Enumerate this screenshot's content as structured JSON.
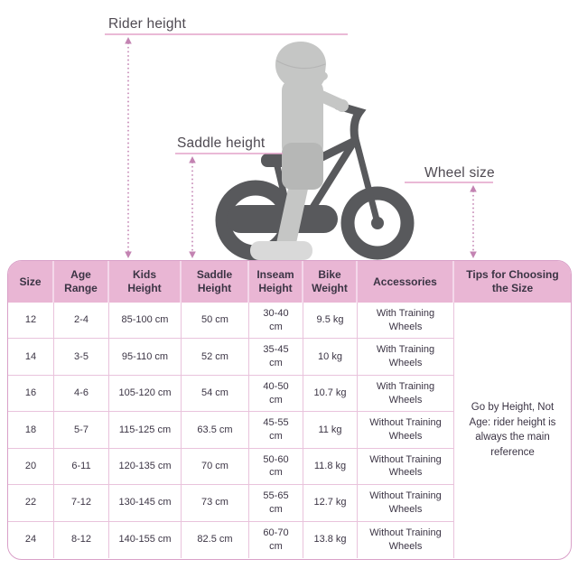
{
  "diagram": {
    "rider_height_label": "Rider height",
    "saddle_height_label": "Saddle height",
    "wheel_size_label": "Wheel size"
  },
  "table": {
    "headers": [
      "Size",
      "Age Range",
      "Kids Height",
      "Saddle Height",
      "Inseam Height",
      "Bike Weight",
      "Accessories",
      "Tips for Choosing the Size"
    ],
    "rows": [
      [
        "12",
        "2-4",
        "85-100 cm",
        "50 cm",
        "30-40 cm",
        "9.5 kg",
        "With Training Wheels"
      ],
      [
        "14",
        "3-5",
        "95-110 cm",
        "52 cm",
        "35-45 cm",
        "10 kg",
        "With Training Wheels"
      ],
      [
        "16",
        "4-6",
        "105-120 cm",
        "54 cm",
        "40-50 cm",
        "10.7 kg",
        "With Training Wheels"
      ],
      [
        "18",
        "5-7",
        "115-125 cm",
        "63.5 cm",
        "45-55 cm",
        "11 kg",
        "Without Training Wheels"
      ],
      [
        "20",
        "6-11",
        "120-135 cm",
        "70 cm",
        "50-60 cm",
        "11.8 kg",
        "Without Training Wheels"
      ],
      [
        "22",
        "7-12",
        "130-145 cm",
        "73 cm",
        "55-65 cm",
        "12.7 kg",
        "Without Training Wheels"
      ],
      [
        "24",
        "8-12",
        "140-155 cm",
        "82.5 cm",
        "60-70 cm",
        "13.8 kg",
        "Without Training Wheels"
      ]
    ],
    "tips": "Go by Height, Not Age: rider height is always the main reference"
  },
  "colors": {
    "header_bg": "#e9b6d4",
    "table_border": "#d9a0c8",
    "row_sep": "#e9c3dc",
    "pink_line": "#e3a2c8",
    "arrow_pink": "#c383b2",
    "bike_gray": "#58595c",
    "child_light": "#c5c6c5"
  }
}
